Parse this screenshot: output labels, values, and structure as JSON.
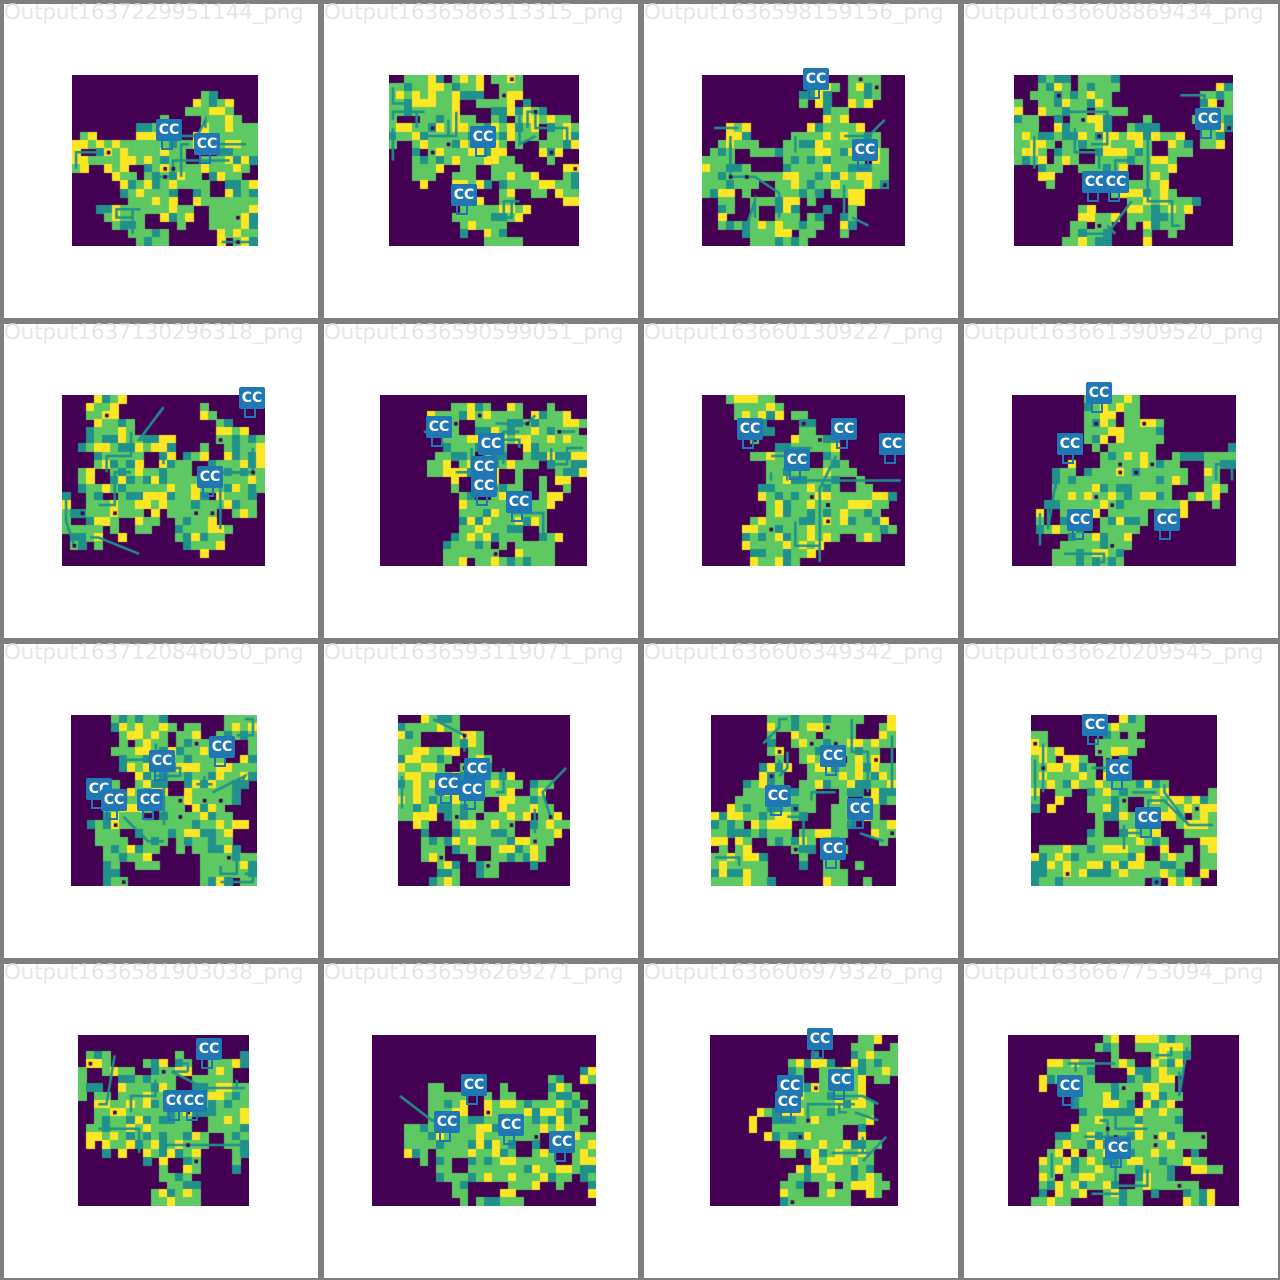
{
  "marker_label": "CC",
  "colors": {
    "frame": "#7f7f7f",
    "panel": "#ffffff",
    "title_text": "#e6e6e6",
    "wall": "#440154",
    "floor_green": "#5ec962",
    "path_teal": "#21918c",
    "item_yellow": "#fde725",
    "marker": "#1f77b4"
  },
  "panels": [
    {
      "title": "Output1637229951144_png",
      "marker_count": 2
    },
    {
      "title": "Output1636586313315_png",
      "marker_count": 2
    },
    {
      "title": "Output1636598159156_png",
      "marker_count": 2
    },
    {
      "title": "Output1636608869434_png",
      "marker_count": 3
    },
    {
      "title": "Output1637130296318_png",
      "marker_count": 2
    },
    {
      "title": "Output1636590599051_png",
      "marker_count": 5
    },
    {
      "title": "Output1636601309227_png",
      "marker_count": 4
    },
    {
      "title": "Output1636613909520_png",
      "marker_count": 4
    },
    {
      "title": "Output1637120846050_png",
      "marker_count": 5
    },
    {
      "title": "Output1636593119071_png",
      "marker_count": 3
    },
    {
      "title": "Output1636606349342_png",
      "marker_count": 4
    },
    {
      "title": "Output1636620209545_png",
      "marker_count": 3
    },
    {
      "title": "Output1636581903038_png",
      "marker_count": 3
    },
    {
      "title": "Output1636596269271_png",
      "marker_count": 4
    },
    {
      "title": "Output1636606979326_png",
      "marker_count": 4
    },
    {
      "title": "Output1636667753094_png",
      "marker_count": 2
    }
  ]
}
